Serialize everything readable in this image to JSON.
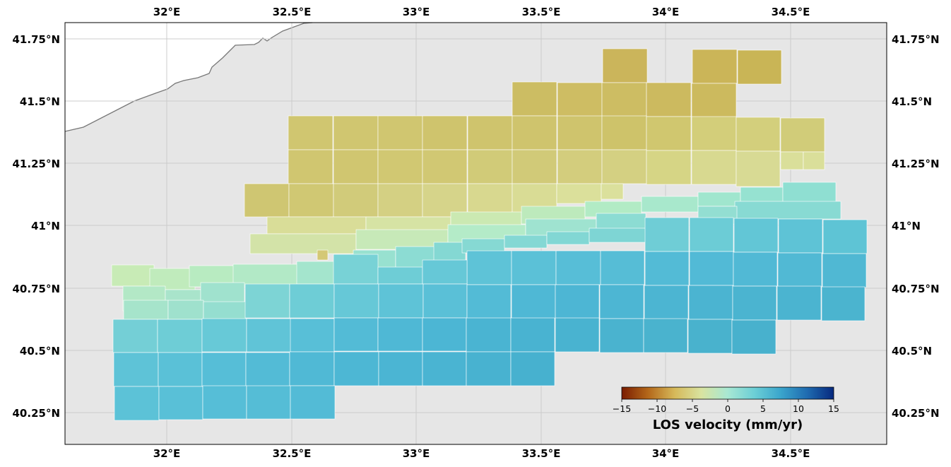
{
  "map": {
    "longitude_ticks": [
      "32°E",
      "32.5°E",
      "33°E",
      "33.5°E",
      "34°E",
      "34.5°E"
    ],
    "latitude_ticks": [
      "41.75°N",
      "41.5°N",
      "41.25°N",
      "41°N",
      "40.75°N",
      "40.5°N",
      "40.25°N"
    ],
    "background_color": "#e6e6e6",
    "land_color": "#ffffff",
    "coastline_color": "#777777"
  },
  "colorbar": {
    "label": "LOS velocity (mm/yr)",
    "ticks": [
      "−15",
      "−10",
      "−5",
      "0",
      "5",
      "10",
      "15"
    ],
    "range": [
      -15,
      15
    ],
    "colors": [
      "#7a1c00",
      "#b4681a",
      "#d6b95a",
      "#d9e3a0",
      "#a8e8d3",
      "#6ccfd6",
      "#3aa5cc",
      "#1f6bb0",
      "#06287e"
    ]
  }
}
